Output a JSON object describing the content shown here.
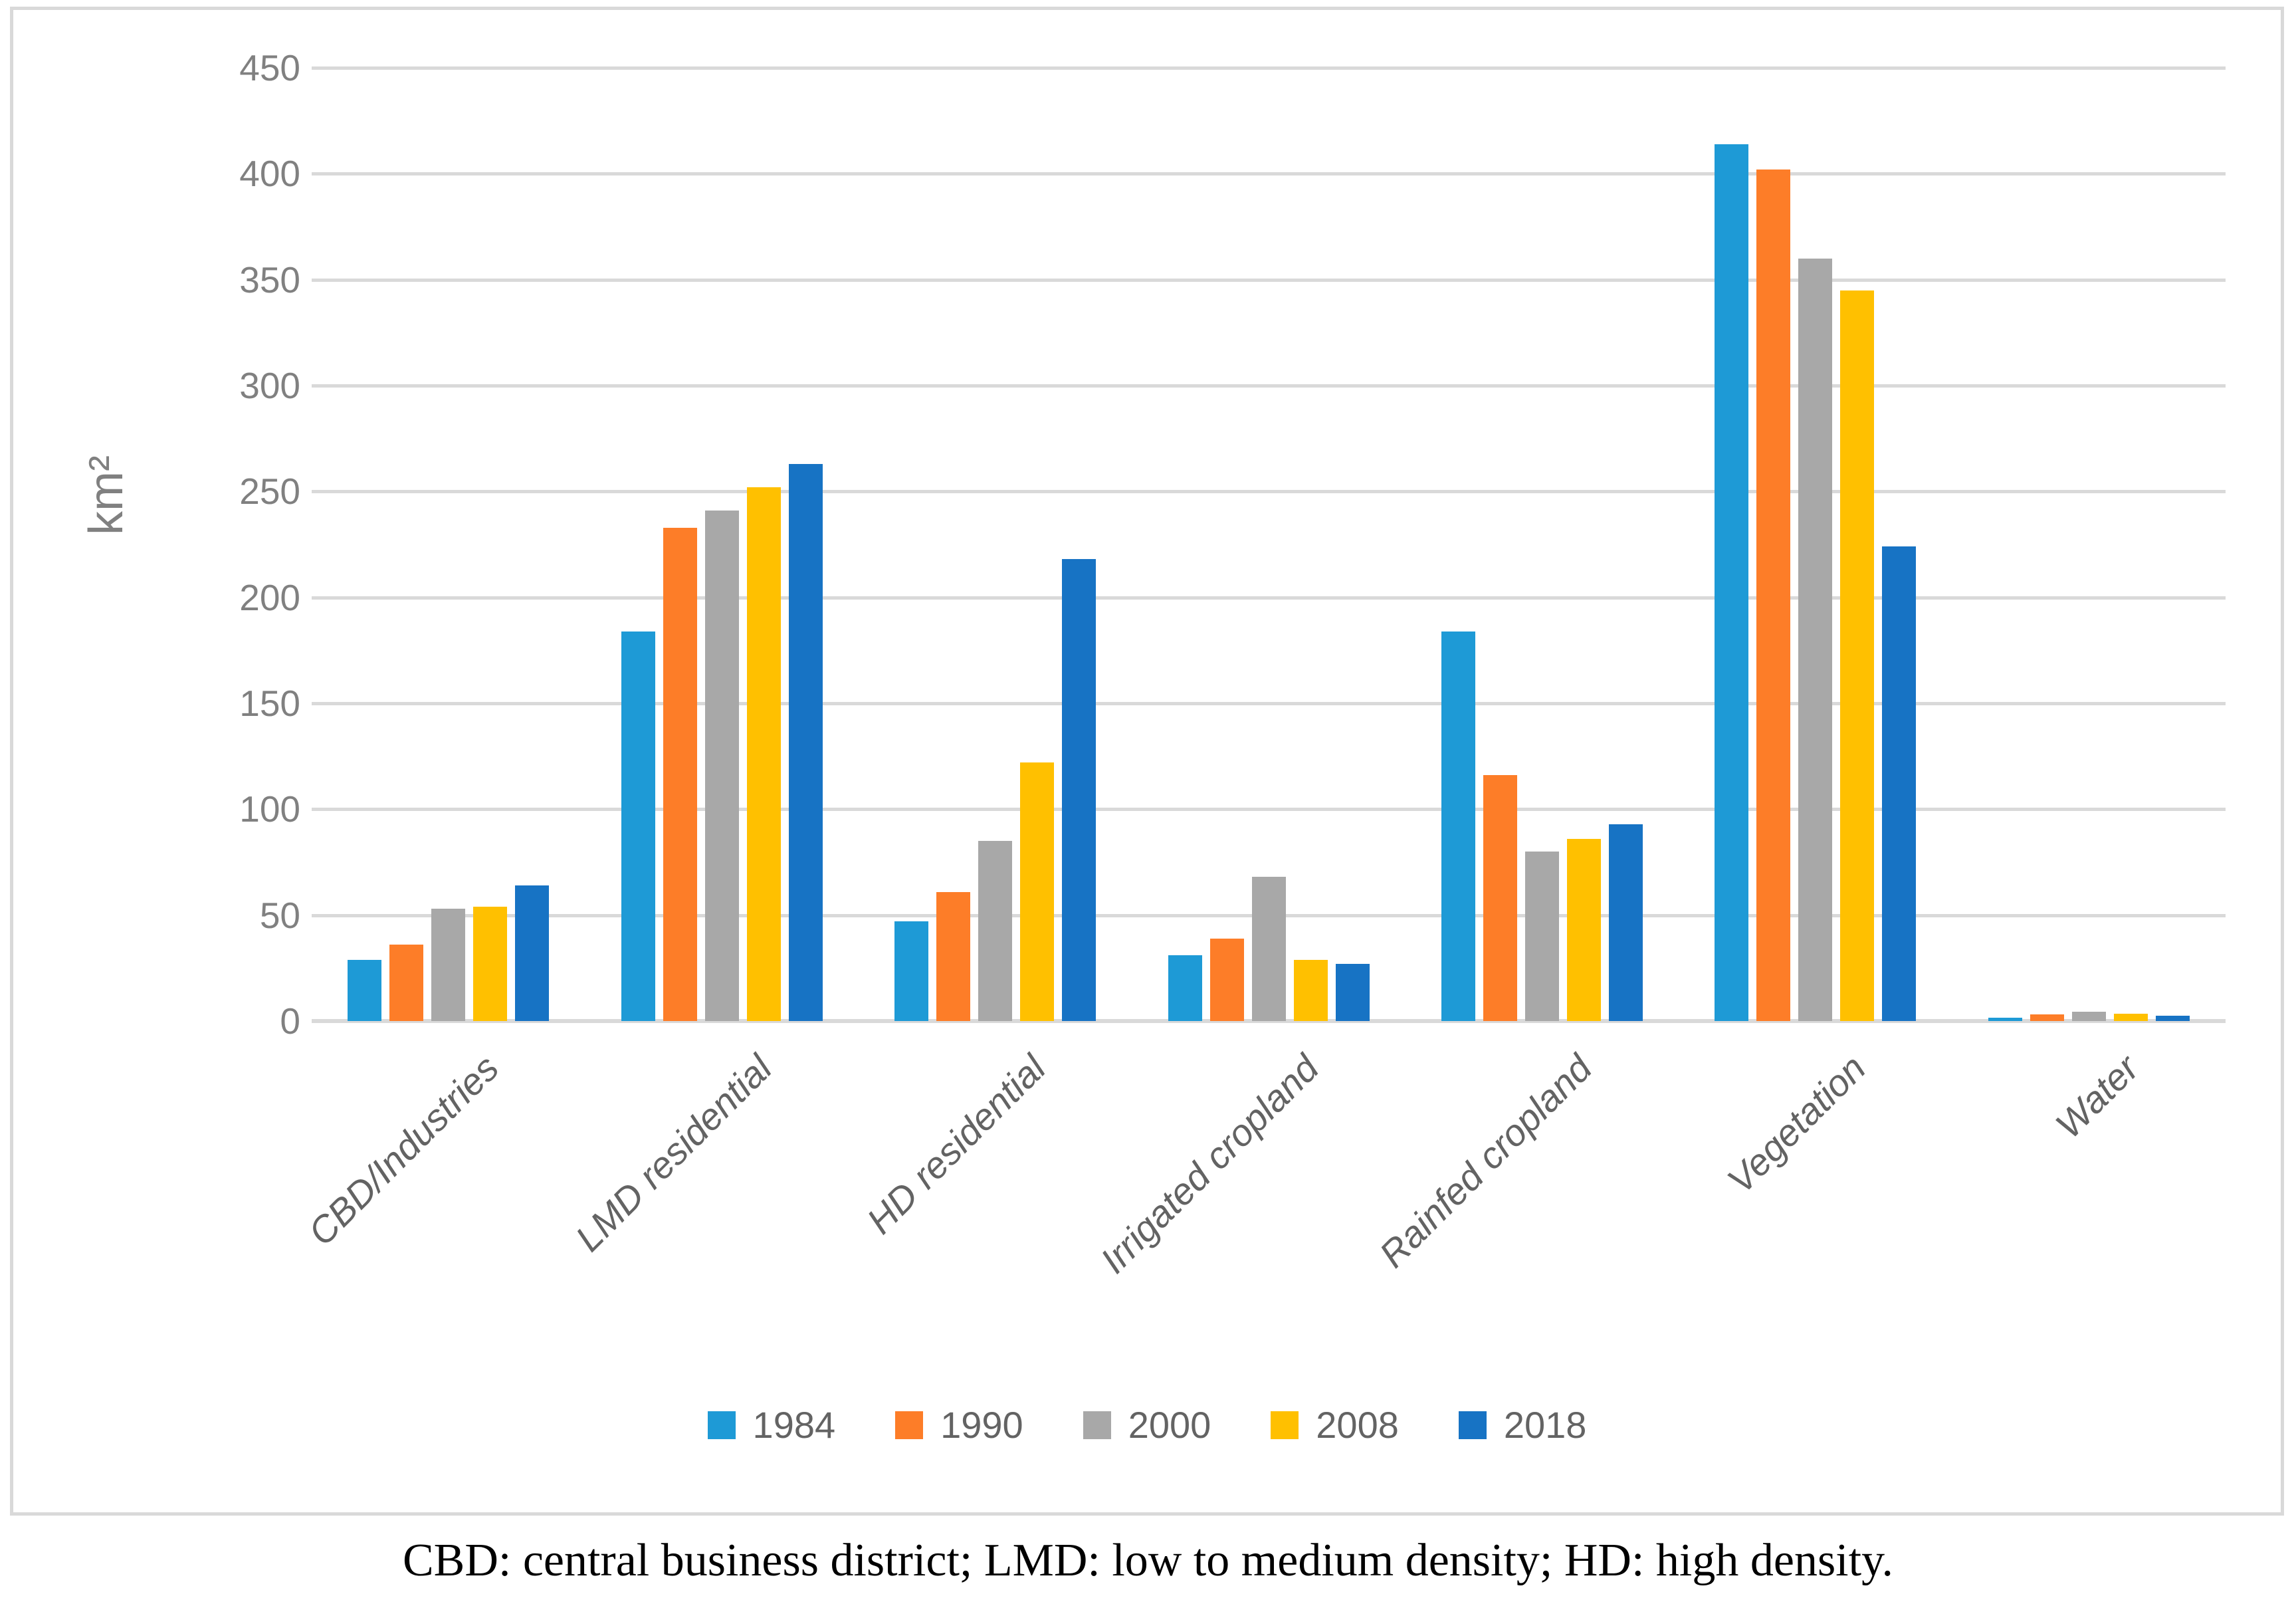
{
  "figure": {
    "caption": "CBD: central business district; LMD: low to medium density; HD: high density."
  },
  "chart_data": {
    "type": "bar",
    "title": "",
    "ylabel": "km²",
    "xlabel": "",
    "ylim": [
      0,
      450
    ],
    "ytick_step": 50,
    "yticks": [
      0,
      50,
      100,
      150,
      200,
      250,
      300,
      350,
      400,
      450
    ],
    "grid": true,
    "legend_position": "bottom",
    "categories": [
      "CBD/Industries",
      "LMD residential",
      "HD residential",
      "Irrigated cropland",
      "Rainfed cropland",
      "Vegetation",
      "Water"
    ],
    "series": [
      {
        "name": "1984",
        "color": "#1E9AD6",
        "values": [
          29,
          184,
          47,
          31,
          184,
          414,
          1.5
        ]
      },
      {
        "name": "1990",
        "color": "#FD7D28",
        "values": [
          36,
          233,
          61,
          39,
          116,
          402,
          3
        ]
      },
      {
        "name": "2000",
        "color": "#A8A8A8",
        "values": [
          53,
          241,
          85,
          68,
          80,
          360,
          4.5
        ]
      },
      {
        "name": "2008",
        "color": "#FFC000",
        "values": [
          54,
          252,
          122,
          29,
          86,
          345,
          3.5
        ]
      },
      {
        "name": "2018",
        "color": "#1773C4",
        "values": [
          64,
          263,
          218,
          27,
          93,
          224,
          2.5
        ]
      }
    ],
    "colors": {
      "gridline": "#D9D9D9",
      "frame_border": "#D9D9D9",
      "tick_label": "#808080",
      "category_label": "#636363",
      "legend_label": "#636363",
      "caption_text": "#000000"
    }
  }
}
